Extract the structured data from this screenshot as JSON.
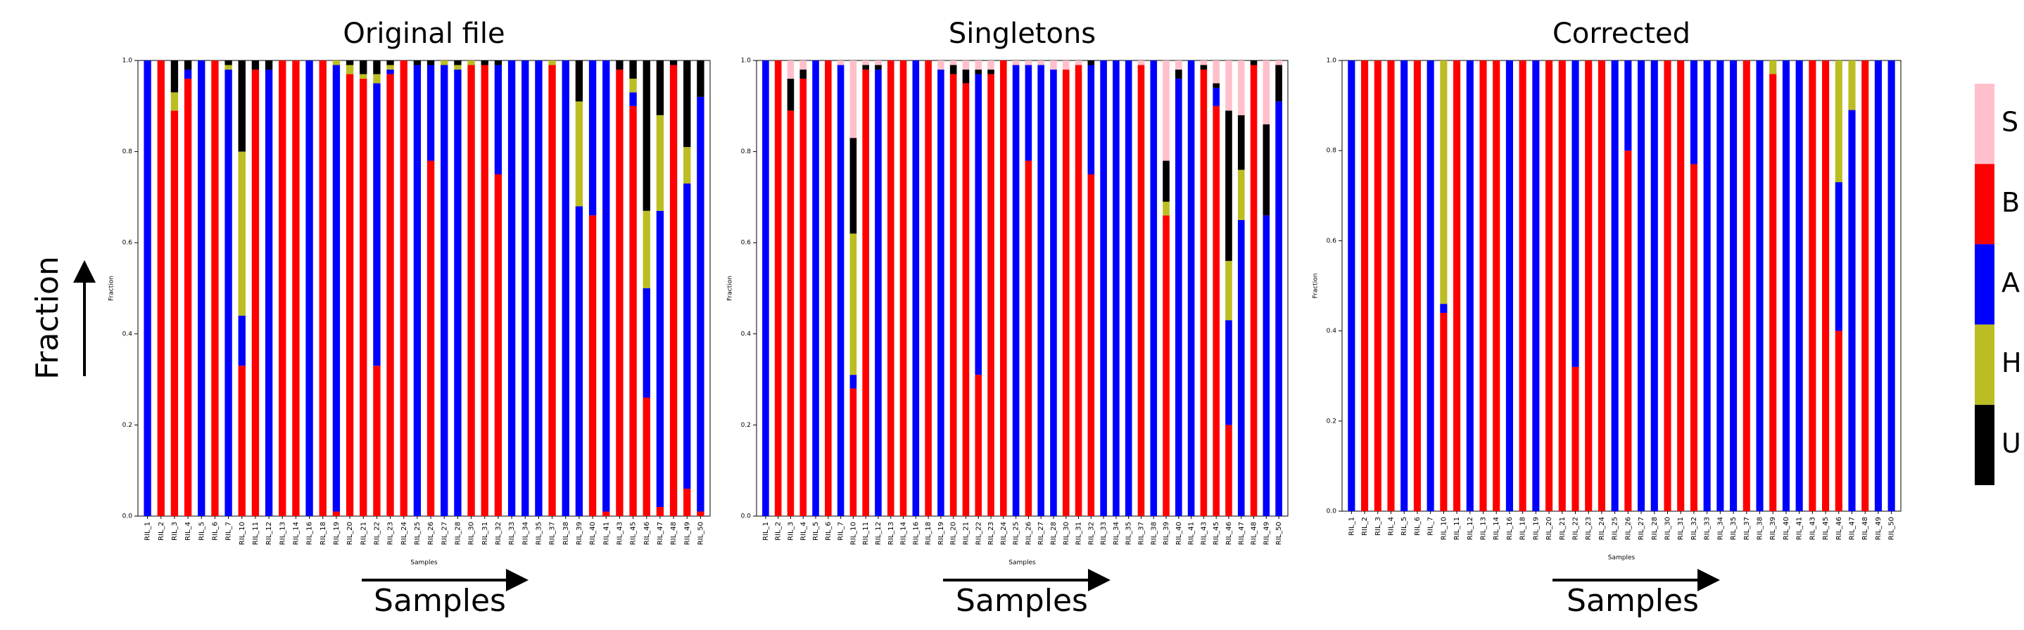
{
  "chart_data": [
    {
      "type": "stacked-bar",
      "title": "Original file",
      "xlabel": "Samples",
      "ylabel": "Fraction",
      "categories": [
        "RIL_1",
        "RIL_2",
        "RIL_3",
        "RIL_4",
        "RIL_5",
        "RIL_6",
        "RIL_7",
        "RIL_10",
        "RIL_11",
        "RIL_12",
        "RIL_13",
        "RIL_14",
        "RIL_16",
        "RIL_18",
        "RIL_19",
        "RIL_20",
        "RIL_21",
        "RIL_22",
        "RIL_23",
        "RIL_24",
        "RIL_25",
        "RIL_26",
        "RIL_27",
        "RIL_28",
        "RIL_30",
        "RIL_31",
        "RIL_32",
        "RIL_33",
        "RIL_34",
        "RIL_35",
        "RIL_37",
        "RIL_38",
        "RIL_39",
        "RIL_40",
        "RIL_41",
        "RIL_43",
        "RIL_45",
        "RIL_46",
        "RIL_47",
        "RIL_48",
        "RIL_49",
        "RIL_50"
      ],
      "ylim": [
        0,
        1
      ],
      "yticks": [
        {
          "value": 0,
          "label": "0.0"
        },
        {
          "value": 0.2,
          "label": "0.2"
        },
        {
          "value": 0.4,
          "label": "0.4"
        },
        {
          "value": 0.6,
          "label": "0.6"
        },
        {
          "value": 0.8,
          "label": "0.8"
        },
        {
          "value": 1,
          "label": "1.0"
        }
      ],
      "series": [
        {
          "color": "#ff0000",
          "values": [
            0,
            1,
            0.89,
            0.96,
            0,
            1,
            0,
            0.33,
            0.98,
            0,
            1,
            1,
            0,
            1,
            0.01,
            0.97,
            0.96,
            0.33,
            0.97,
            1,
            0,
            0.78,
            0,
            0,
            0.99,
            0.99,
            0.75,
            0,
            0,
            0,
            0.99,
            0,
            0,
            0.66,
            0.01,
            0.98,
            0.9,
            0.26,
            0.02,
            0.99,
            0.06,
            0.01
          ]
        },
        {
          "color": "#0000ff",
          "values": [
            1,
            0,
            0,
            0.02,
            1,
            0,
            0.98,
            0.11,
            0,
            0.98,
            0,
            0,
            1,
            0,
            0.98,
            0,
            0,
            0.62,
            0.01,
            0,
            0.99,
            0.21,
            0.99,
            0.98,
            0,
            0,
            0.24,
            1,
            1,
            1,
            0,
            1,
            0.68,
            0.34,
            0.99,
            0,
            0.03,
            0.24,
            0.65,
            0,
            0.67,
            0.91
          ]
        },
        {
          "color": "#bcbd22",
          "values": [
            0,
            0,
            0.04,
            0,
            0,
            0,
            0.01,
            0.36,
            0,
            0,
            0,
            0,
            0,
            0,
            0.01,
            0.02,
            0.01,
            0.02,
            0.01,
            0,
            0,
            0,
            0.01,
            0.01,
            0.01,
            0,
            0,
            0,
            0,
            0,
            0.01,
            0,
            0.23,
            0,
            0,
            0,
            0.03,
            0.17,
            0.21,
            0,
            0.08,
            0
          ]
        },
        {
          "color": "#000000",
          "values": [
            0,
            0,
            0.07,
            0.02,
            0,
            0,
            0.01,
            0.2,
            0.02,
            0.02,
            0,
            0,
            0,
            0,
            0,
            0.01,
            0.03,
            0.03,
            0.01,
            0,
            0.01,
            0.01,
            0,
            0.01,
            0,
            0.01,
            0.01,
            0,
            0,
            0,
            0,
            0,
            0.09,
            0,
            0,
            0.02,
            0.04,
            0.33,
            0.12,
            0.01,
            0.19,
            0.08
          ]
        }
      ]
    },
    {
      "type": "stacked-bar",
      "title": "Singletons",
      "xlabel": "Samples",
      "ylabel": "Fraction",
      "categories": [
        "RIL_1",
        "RIL_2",
        "RIL_3",
        "RIL_4",
        "RIL_5",
        "RIL_6",
        "RIL_7",
        "RIL_10",
        "RIL_11",
        "RIL_12",
        "RIL_13",
        "RIL_14",
        "RIL_16",
        "RIL_18",
        "RIL_19",
        "RIL_20",
        "RIL_21",
        "RIL_22",
        "RIL_23",
        "RIL_24",
        "RIL_25",
        "RIL_26",
        "RIL_27",
        "RIL_28",
        "RIL_30",
        "RIL_31",
        "RIL_32",
        "RIL_33",
        "RIL_34",
        "RIL_35",
        "RIL_37",
        "RIL_38",
        "RIL_39",
        "RIL_40",
        "RIL_41",
        "RIL_43",
        "RIL_45",
        "RIL_46",
        "RIL_47",
        "RIL_48",
        "RIL_49",
        "RIL_50"
      ],
      "ylim": [
        0,
        1
      ],
      "yticks": [
        {
          "value": 0,
          "label": "0.0"
        },
        {
          "value": 0.2,
          "label": "0.2"
        },
        {
          "value": 0.4,
          "label": "0.4"
        },
        {
          "value": 0.6,
          "label": "0.6"
        },
        {
          "value": 0.8,
          "label": "0.8"
        },
        {
          "value": 1,
          "label": "1.0"
        }
      ],
      "series": [
        {
          "name": "B",
          "color": "#ff0000",
          "values": [
            0,
            1,
            0.89,
            0.96,
            0,
            1,
            0,
            0.28,
            0.98,
            0,
            1,
            1,
            0,
            1,
            0,
            0.97,
            0.95,
            0.31,
            0.97,
            1,
            0,
            0.78,
            0,
            0,
            0.98,
            0.99,
            0.75,
            0,
            0,
            0,
            0.99,
            0,
            0.66,
            0,
            0,
            0.98,
            0.9,
            0.2,
            0,
            0.99,
            0,
            0
          ]
        },
        {
          "name": "A",
          "color": "#0000ff",
          "values": [
            1,
            0,
            0,
            0,
            1,
            0,
            0.99,
            0.03,
            0,
            0.98,
            0,
            0,
            1,
            0,
            0.98,
            0,
            0,
            0.66,
            0,
            0,
            0.99,
            0.21,
            0.99,
            0.98,
            0,
            0,
            0.24,
            1,
            1,
            1,
            0,
            1,
            0,
            0.96,
            1,
            0,
            0.04,
            0.23,
            0.65,
            0,
            0.66,
            0.91
          ]
        },
        {
          "name": "H",
          "color": "#bcbd22",
          "values": [
            0,
            0,
            0,
            0,
            0,
            0,
            0,
            0.31,
            0,
            0,
            0,
            0,
            0,
            0,
            0,
            0,
            0,
            0,
            0,
            0,
            0,
            0,
            0,
            0,
            0,
            0,
            0,
            0,
            0,
            0,
            0,
            0,
            0.03,
            0,
            0,
            0,
            0,
            0.13,
            0.11,
            0,
            0,
            0
          ]
        },
        {
          "name": "U",
          "color": "#000000",
          "values": [
            0,
            0,
            0.07,
            0.02,
            0,
            0,
            0,
            0.21,
            0.01,
            0.01,
            0,
            0,
            0,
            0,
            0,
            0.02,
            0.03,
            0.01,
            0.01,
            0,
            0,
            0,
            0,
            0,
            0,
            0,
            0.01,
            0,
            0,
            0,
            0,
            0,
            0.09,
            0.02,
            0,
            0.01,
            0.01,
            0.33,
            0.12,
            0.01,
            0.2,
            0.08
          ]
        },
        {
          "name": "S",
          "color": "#ffc0cb",
          "values": [
            0,
            0,
            0.04,
            0.02,
            0,
            0,
            0.01,
            0.17,
            0.01,
            0.01,
            0,
            0,
            0,
            0,
            0.02,
            0.01,
            0.02,
            0.02,
            0.02,
            0,
            0.01,
            0.01,
            0.01,
            0.02,
            0.02,
            0.01,
            0,
            0,
            0,
            0,
            0.01,
            0,
            0.22,
            0.02,
            0,
            0.01,
            0.05,
            0.11,
            0.12,
            0,
            0.14,
            0.01
          ]
        }
      ]
    },
    {
      "type": "stacked-bar",
      "title": "Corrected",
      "xlabel": "Samples",
      "ylabel": "Fraction",
      "categories": [
        "RIL_1",
        "RIL_2",
        "RIL_3",
        "RIL_4",
        "RIL_5",
        "RIL_6",
        "RIL_7",
        "RIL_10",
        "RIL_11",
        "RIL_12",
        "RIL_13",
        "RIL_14",
        "RIL_16",
        "RIL_18",
        "RIL_19",
        "RIL_20",
        "RIL_21",
        "RIL_22",
        "RIL_23",
        "RIL_24",
        "RIL_25",
        "RIL_26",
        "RIL_27",
        "RIL_28",
        "RIL_30",
        "RIL_31",
        "RIL_32",
        "RIL_33",
        "RIL_34",
        "RIL_35",
        "RIL_37",
        "RIL_38",
        "RIL_39",
        "RIL_40",
        "RIL_41",
        "RIL_43",
        "RIL_45",
        "RIL_46",
        "RIL_47",
        "RIL_48",
        "RIL_49",
        "RIL_50"
      ],
      "ylim": [
        0,
        1
      ],
      "yticks": [
        {
          "value": 0,
          "label": "0.0"
        },
        {
          "value": 0.2,
          "label": "0.2"
        },
        {
          "value": 0.4,
          "label": "0.4"
        },
        {
          "value": 0.6,
          "label": "0.6"
        },
        {
          "value": 0.8,
          "label": "0.8"
        },
        {
          "value": 1,
          "label": "1.0"
        }
      ],
      "series": [
        {
          "color": "#ff0000",
          "values": [
            0,
            1,
            1,
            1,
            0,
            1,
            0,
            0.44,
            1,
            0,
            1,
            1,
            0,
            1,
            0,
            1,
            1,
            0.32,
            1,
            1,
            0,
            0.8,
            0,
            0,
            1,
            1,
            0.77,
            0,
            0,
            0,
            1,
            0,
            0.97,
            0,
            0,
            1,
            1,
            0.4,
            0,
            1,
            0,
            0
          ]
        },
        {
          "color": "#0000ff",
          "values": [
            1,
            0,
            0,
            0,
            1,
            0,
            1,
            0.02,
            0,
            1,
            0,
            0,
            1,
            0,
            1,
            0,
            0,
            0.68,
            0,
            0,
            1,
            0.2,
            1,
            1,
            0,
            0,
            0.23,
            1,
            1,
            1,
            0,
            1,
            0,
            1,
            1,
            0,
            0,
            0.33,
            0.89,
            0,
            1,
            1
          ]
        },
        {
          "color": "#bcbd22",
          "values": [
            0,
            0,
            0,
            0,
            0,
            0,
            0,
            0.54,
            0,
            0,
            0,
            0,
            0,
            0,
            0,
            0,
            0,
            0,
            0,
            0,
            0,
            0,
            0,
            0,
            0,
            0,
            0,
            0,
            0,
            0,
            0,
            0,
            0.03,
            0,
            0,
            0,
            0,
            0.27,
            0.11,
            0,
            0,
            0
          ]
        }
      ]
    }
  ],
  "annotations": {
    "y_arrow": "Fraction",
    "x_arrow": "Samples"
  }
}
